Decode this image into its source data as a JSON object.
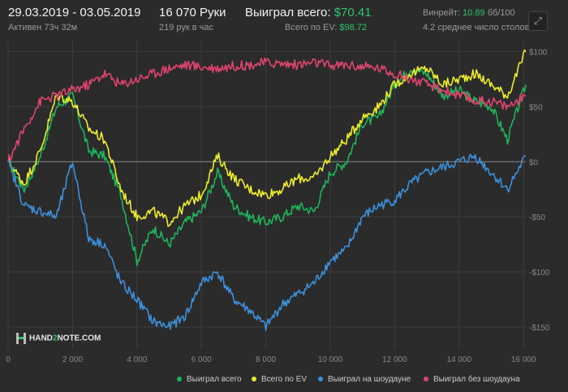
{
  "header": {
    "date_range": "29.03.2019 - 03.05.2019",
    "active_time": "Активен 73ч 32м",
    "hands": "16 070 Руки",
    "hands_per_hour": "219 рук в час",
    "won_total_label": "Выиграл всего:",
    "won_total_value": "$70.41",
    "ev_total_label": "Всего по EV:",
    "ev_total_value": "$98.72",
    "winrate_label": "Винрейт:",
    "winrate_value": "10.89",
    "winrate_unit": "бб/100",
    "tables_avg": "4.2 среднее число столов"
  },
  "logo": {
    "prefix": "HAND",
    "two": "2",
    "suffix": "NOTE.COM"
  },
  "colors": {
    "background": "#2b2b2b",
    "grid": "#3e3e3e",
    "zero_line": "#8a8a8a",
    "won_total": "#1fb35a",
    "ev": "#ecec2c",
    "showdown": "#3c8fdb",
    "non_showdown": "#e0446e"
  },
  "chart_data": {
    "type": "line",
    "xlim": [
      0,
      16070
    ],
    "ylim": [
      -170,
      110
    ],
    "x_ticks": [
      0,
      2000,
      4000,
      6000,
      8000,
      10000,
      12000,
      14000,
      16000
    ],
    "x_tick_labels": [
      "0",
      "2 000",
      "4 000",
      "6 000",
      "8 000",
      "10 000",
      "12 000",
      "14 000",
      "16 000"
    ],
    "y_ticks": [
      100,
      50,
      0,
      -50,
      -100,
      -150
    ],
    "y_tick_labels": [
      "$100",
      "$50",
      "$0",
      "-$50",
      "-$100",
      "-$150"
    ],
    "grid": true,
    "legend_position": "bottom",
    "series": [
      {
        "name": "Выиграл всего",
        "color_key": "won_total",
        "x": [
          0,
          500,
          1000,
          1500,
          2000,
          2500,
          3000,
          3500,
          4000,
          4500,
          5000,
          5500,
          6000,
          6500,
          7000,
          7500,
          8000,
          8500,
          9000,
          9500,
          10000,
          10500,
          11000,
          11500,
          12000,
          12500,
          13000,
          13500,
          14000,
          14500,
          15000,
          15500,
          16070
        ],
        "y": [
          0,
          -25,
          5,
          50,
          60,
          10,
          5,
          -30,
          -90,
          -60,
          -75,
          -55,
          -45,
          -10,
          -40,
          -50,
          -55,
          -50,
          -40,
          -45,
          -10,
          0,
          35,
          40,
          70,
          85,
          80,
          60,
          65,
          55,
          50,
          20,
          70
        ]
      },
      {
        "name": "Всего по EV",
        "color_key": "ev",
        "x": [
          0,
          500,
          1000,
          1500,
          2000,
          2500,
          3000,
          3500,
          4000,
          4500,
          5000,
          5500,
          6000,
          6500,
          7000,
          7500,
          8000,
          8500,
          9000,
          9500,
          10000,
          10500,
          11000,
          11500,
          12000,
          12500,
          13000,
          13500,
          14000,
          14500,
          15000,
          15500,
          16070
        ],
        "y": [
          0,
          -20,
          10,
          60,
          55,
          30,
          20,
          -25,
          -50,
          -45,
          -55,
          -40,
          -30,
          5,
          -15,
          -25,
          -30,
          -25,
          -15,
          -15,
          5,
          20,
          40,
          50,
          70,
          80,
          85,
          70,
          75,
          80,
          70,
          60,
          100
        ]
      },
      {
        "name": "Выиграл на шоудауне",
        "color_key": "showdown",
        "x": [
          0,
          500,
          1000,
          1500,
          2000,
          2500,
          3000,
          3500,
          4000,
          4500,
          5000,
          5500,
          6000,
          6500,
          7000,
          7500,
          8000,
          8500,
          9000,
          9500,
          10000,
          10500,
          11000,
          11500,
          12000,
          12500,
          13000,
          13500,
          14000,
          14500,
          15000,
          15500,
          16070
        ],
        "y": [
          0,
          -40,
          -45,
          -50,
          0,
          -70,
          -75,
          -110,
          -125,
          -145,
          -150,
          -140,
          -110,
          -100,
          -125,
          -135,
          -150,
          -130,
          -120,
          -110,
          -90,
          -80,
          -50,
          -40,
          -35,
          -20,
          -10,
          -5,
          0,
          5,
          -10,
          -25,
          5
        ]
      },
      {
        "name": "Выиграл без шоудауна",
        "color_key": "non_showdown",
        "x": [
          0,
          500,
          1000,
          1500,
          2000,
          2500,
          3000,
          3500,
          4000,
          4500,
          5000,
          5500,
          6000,
          6500,
          7000,
          7500,
          8000,
          8500,
          9000,
          9500,
          10000,
          10500,
          11000,
          11500,
          12000,
          12500,
          13000,
          13500,
          14000,
          14500,
          15000,
          15500,
          16070
        ],
        "y": [
          0,
          30,
          55,
          60,
          65,
          70,
          80,
          70,
          75,
          80,
          85,
          88,
          86,
          85,
          87,
          88,
          90,
          89,
          88,
          90,
          87,
          88,
          86,
          85,
          80,
          75,
          70,
          65,
          60,
          55,
          55,
          50,
          60
        ]
      }
    ]
  }
}
